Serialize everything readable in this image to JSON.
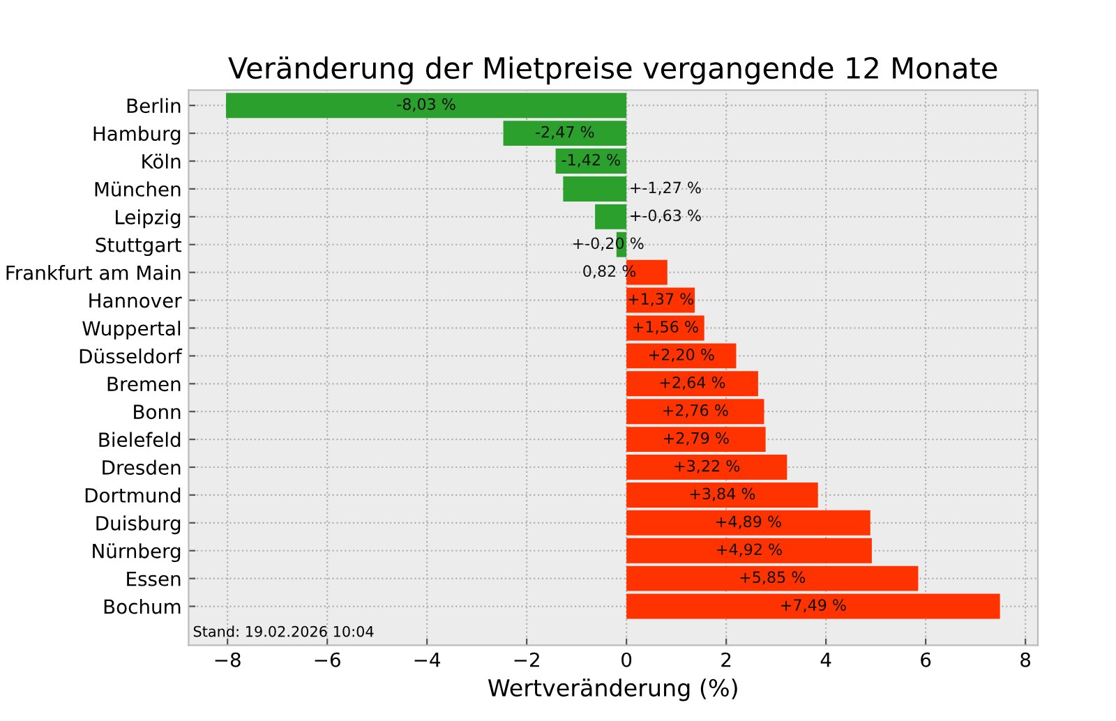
{
  "chart_data": {
    "type": "bar",
    "orientation": "horizontal",
    "title": "Veränderung der Mietpreise vergangende 12 Monate",
    "xlabel": "Wertveränderung (%)",
    "categories": [
      "Berlin",
      "Hamburg",
      "Köln",
      "München",
      "Leipzig",
      "Stuttgart",
      "Frankfurt am Main",
      "Hannover",
      "Wuppertal",
      "Düsseldorf",
      "Bremen",
      "Bonn",
      "Bielefeld",
      "Dresden",
      "Dortmund",
      "Duisburg",
      "Nürnberg",
      "Essen",
      "Bochum"
    ],
    "values": [
      -8.03,
      -2.47,
      -1.42,
      -1.27,
      -0.63,
      -0.2,
      0.82,
      1.37,
      1.56,
      2.2,
      2.64,
      2.76,
      2.79,
      3.22,
      3.84,
      4.89,
      4.92,
      5.85,
      7.49
    ],
    "colors": [
      "#2ca02c",
      "#2ca02c",
      "#2ca02c",
      "#2ca02c",
      "#2ca02c",
      "#2ca02c",
      "#ff3300",
      "#ff3300",
      "#ff3300",
      "#ff3300",
      "#ff3300",
      "#ff3300",
      "#ff3300",
      "#ff3300",
      "#ff3300",
      "#ff3300",
      "#ff3300",
      "#ff3300",
      "#ff3300"
    ],
    "value_labels": [
      "-8,03 %",
      "-2,47 %",
      "-1,42 %",
      "+-1,27 %",
      "+-0,63 %",
      "+-0,20 %",
      "0,82 %",
      "+1,37 %",
      "+1,56 %",
      "+2,20 %",
      "+2,64 %",
      "+2,76 %",
      "+2,79 %",
      "+3,22 %",
      "+3,84 %",
      "+4,89 %",
      "+4,92 %",
      "+5,85 %",
      "+7,49 %"
    ],
    "xlim": [
      -8.78,
      8.25
    ],
    "xticks": [
      {
        "value": -8,
        "label": "−8"
      },
      {
        "value": -6,
        "label": "−6"
      },
      {
        "value": -4,
        "label": "−4"
      },
      {
        "value": -2,
        "label": "−2"
      },
      0,
      2,
      4,
      6,
      8
    ],
    "grid": true,
    "annotations": [
      "Stand: 19.02.2026 10:04"
    ]
  }
}
